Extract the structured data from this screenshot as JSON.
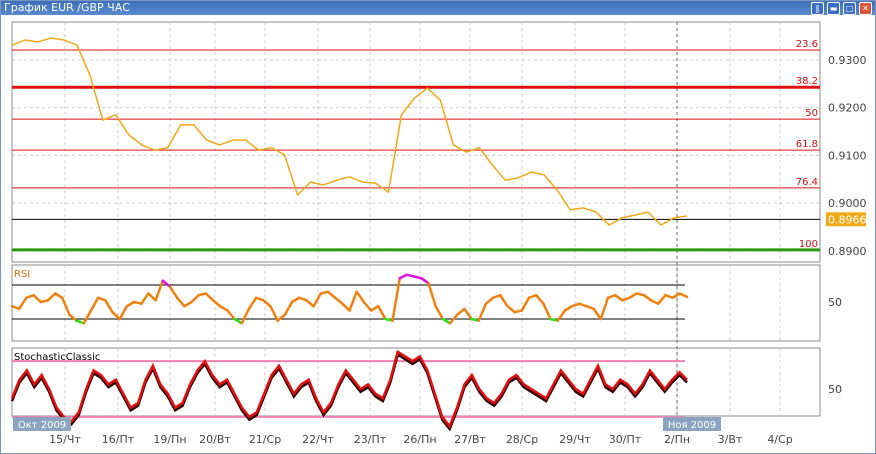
{
  "window": {
    "title": "График EUR /GBP  ЧАС",
    "buttons": [
      "pause",
      "minimize",
      "maximize",
      "close"
    ]
  },
  "colors": {
    "price": "#f0a818",
    "fib": "#e01010",
    "support": "#2a9a10",
    "rsi": "#f08010",
    "rsi_overbought": "#e010e0",
    "rsi_oversold": "#30e010",
    "stoch": "#e01010",
    "current_price_bg": "#f0a818",
    "date_badge_bg": "#8aa4bf"
  },
  "chart_data": [
    {
      "type": "line",
      "name": "EUR/GBP",
      "ylim": [
        0.887,
        0.9355
      ],
      "yticks": [
        "0.9300",
        "0.9200",
        "0.9100",
        "0.9000",
        "0.8900"
      ],
      "current_price": "0.8966",
      "fib_levels": [
        {
          "label": "23.6",
          "price": 0.9321
        },
        {
          "label": "38.2",
          "price": 0.9243
        },
        {
          "label": "50",
          "price": 0.9176
        },
        {
          "label": "61.8",
          "price": 0.9111
        },
        {
          "label": "76.4",
          "price": 0.9032
        },
        {
          "label": "100",
          "price": 0.8902
        }
      ],
      "values": [
        0.9331,
        0.9342,
        0.9338,
        0.9346,
        0.9342,
        0.9331,
        0.9269,
        0.9174,
        0.9185,
        0.9143,
        0.9122,
        0.9111,
        0.9116,
        0.9164,
        0.9164,
        0.9132,
        0.9122,
        0.9132,
        0.9132,
        0.9111,
        0.9116,
        0.9101,
        0.9017,
        0.9044,
        0.9038,
        0.9048,
        0.9055,
        0.9044,
        0.9042,
        0.9023,
        0.9185,
        0.922,
        0.9241,
        0.9216,
        0.9122,
        0.9107,
        0.9116,
        0.908,
        0.9048,
        0.9053,
        0.9065,
        0.9059,
        0.9027,
        0.8986,
        0.899,
        0.8981,
        0.8954,
        0.8969,
        0.8975,
        0.8981,
        0.8954,
        0.8969,
        0.8973
      ]
    },
    {
      "type": "line",
      "name": "RSI",
      "levels": [
        70,
        30
      ],
      "ytick": "50",
      "ylim": [
        5,
        95
      ],
      "values": [
        45,
        42,
        55,
        58,
        50,
        52,
        60,
        55,
        35,
        28,
        25,
        40,
        55,
        52,
        38,
        30,
        45,
        50,
        48,
        60,
        52,
        75,
        68,
        55,
        45,
        50,
        58,
        60,
        52,
        45,
        40,
        30,
        25,
        42,
        55,
        52,
        45,
        28,
        35,
        50,
        55,
        52,
        45,
        60,
        62,
        55,
        48,
        40,
        62,
        50,
        40,
        45,
        30,
        28,
        78,
        82,
        80,
        78,
        72,
        45,
        30,
        25,
        35,
        42,
        30,
        28,
        48,
        55,
        58,
        45,
        38,
        40,
        55,
        58,
        48,
        30,
        28,
        40,
        45,
        48,
        45,
        42,
        30,
        55,
        58,
        52,
        55,
        60,
        58,
        52,
        48,
        58,
        55,
        60,
        56
      ]
    },
    {
      "type": "line",
      "name": "StochasticClassic",
      "levels": [
        80,
        20
      ],
      "ytick": "50",
      "ylim": [
        5,
        95
      ],
      "values": [
        40,
        60,
        70,
        55,
        65,
        50,
        30,
        20,
        15,
        25,
        50,
        70,
        65,
        55,
        60,
        45,
        30,
        35,
        60,
        75,
        55,
        45,
        30,
        35,
        55,
        70,
        80,
        65,
        55,
        60,
        45,
        30,
        20,
        25,
        45,
        65,
        75,
        60,
        45,
        55,
        60,
        40,
        25,
        35,
        55,
        70,
        60,
        50,
        55,
        45,
        40,
        60,
        90,
        85,
        80,
        85,
        70,
        45,
        20,
        10,
        30,
        55,
        65,
        50,
        40,
        35,
        45,
        60,
        65,
        55,
        50,
        45,
        40,
        55,
        70,
        60,
        50,
        45,
        60,
        75,
        55,
        50,
        60,
        55,
        45,
        55,
        70,
        60,
        50,
        60,
        68,
        60
      ]
    }
  ],
  "time_axis": {
    "labels": [
      "15/Чт",
      "16/Пт",
      "19/Пн",
      "20/Вт",
      "21/Ср",
      "22/Чт",
      "23/Пт",
      "26/Пн",
      "27/Вт",
      "28/Ср",
      "29/Чт",
      "30/Пт",
      "2/Пн",
      "3/Вт",
      "4/Ср"
    ],
    "month_badges": [
      "Окт 2009",
      "Ноя 2009"
    ]
  }
}
